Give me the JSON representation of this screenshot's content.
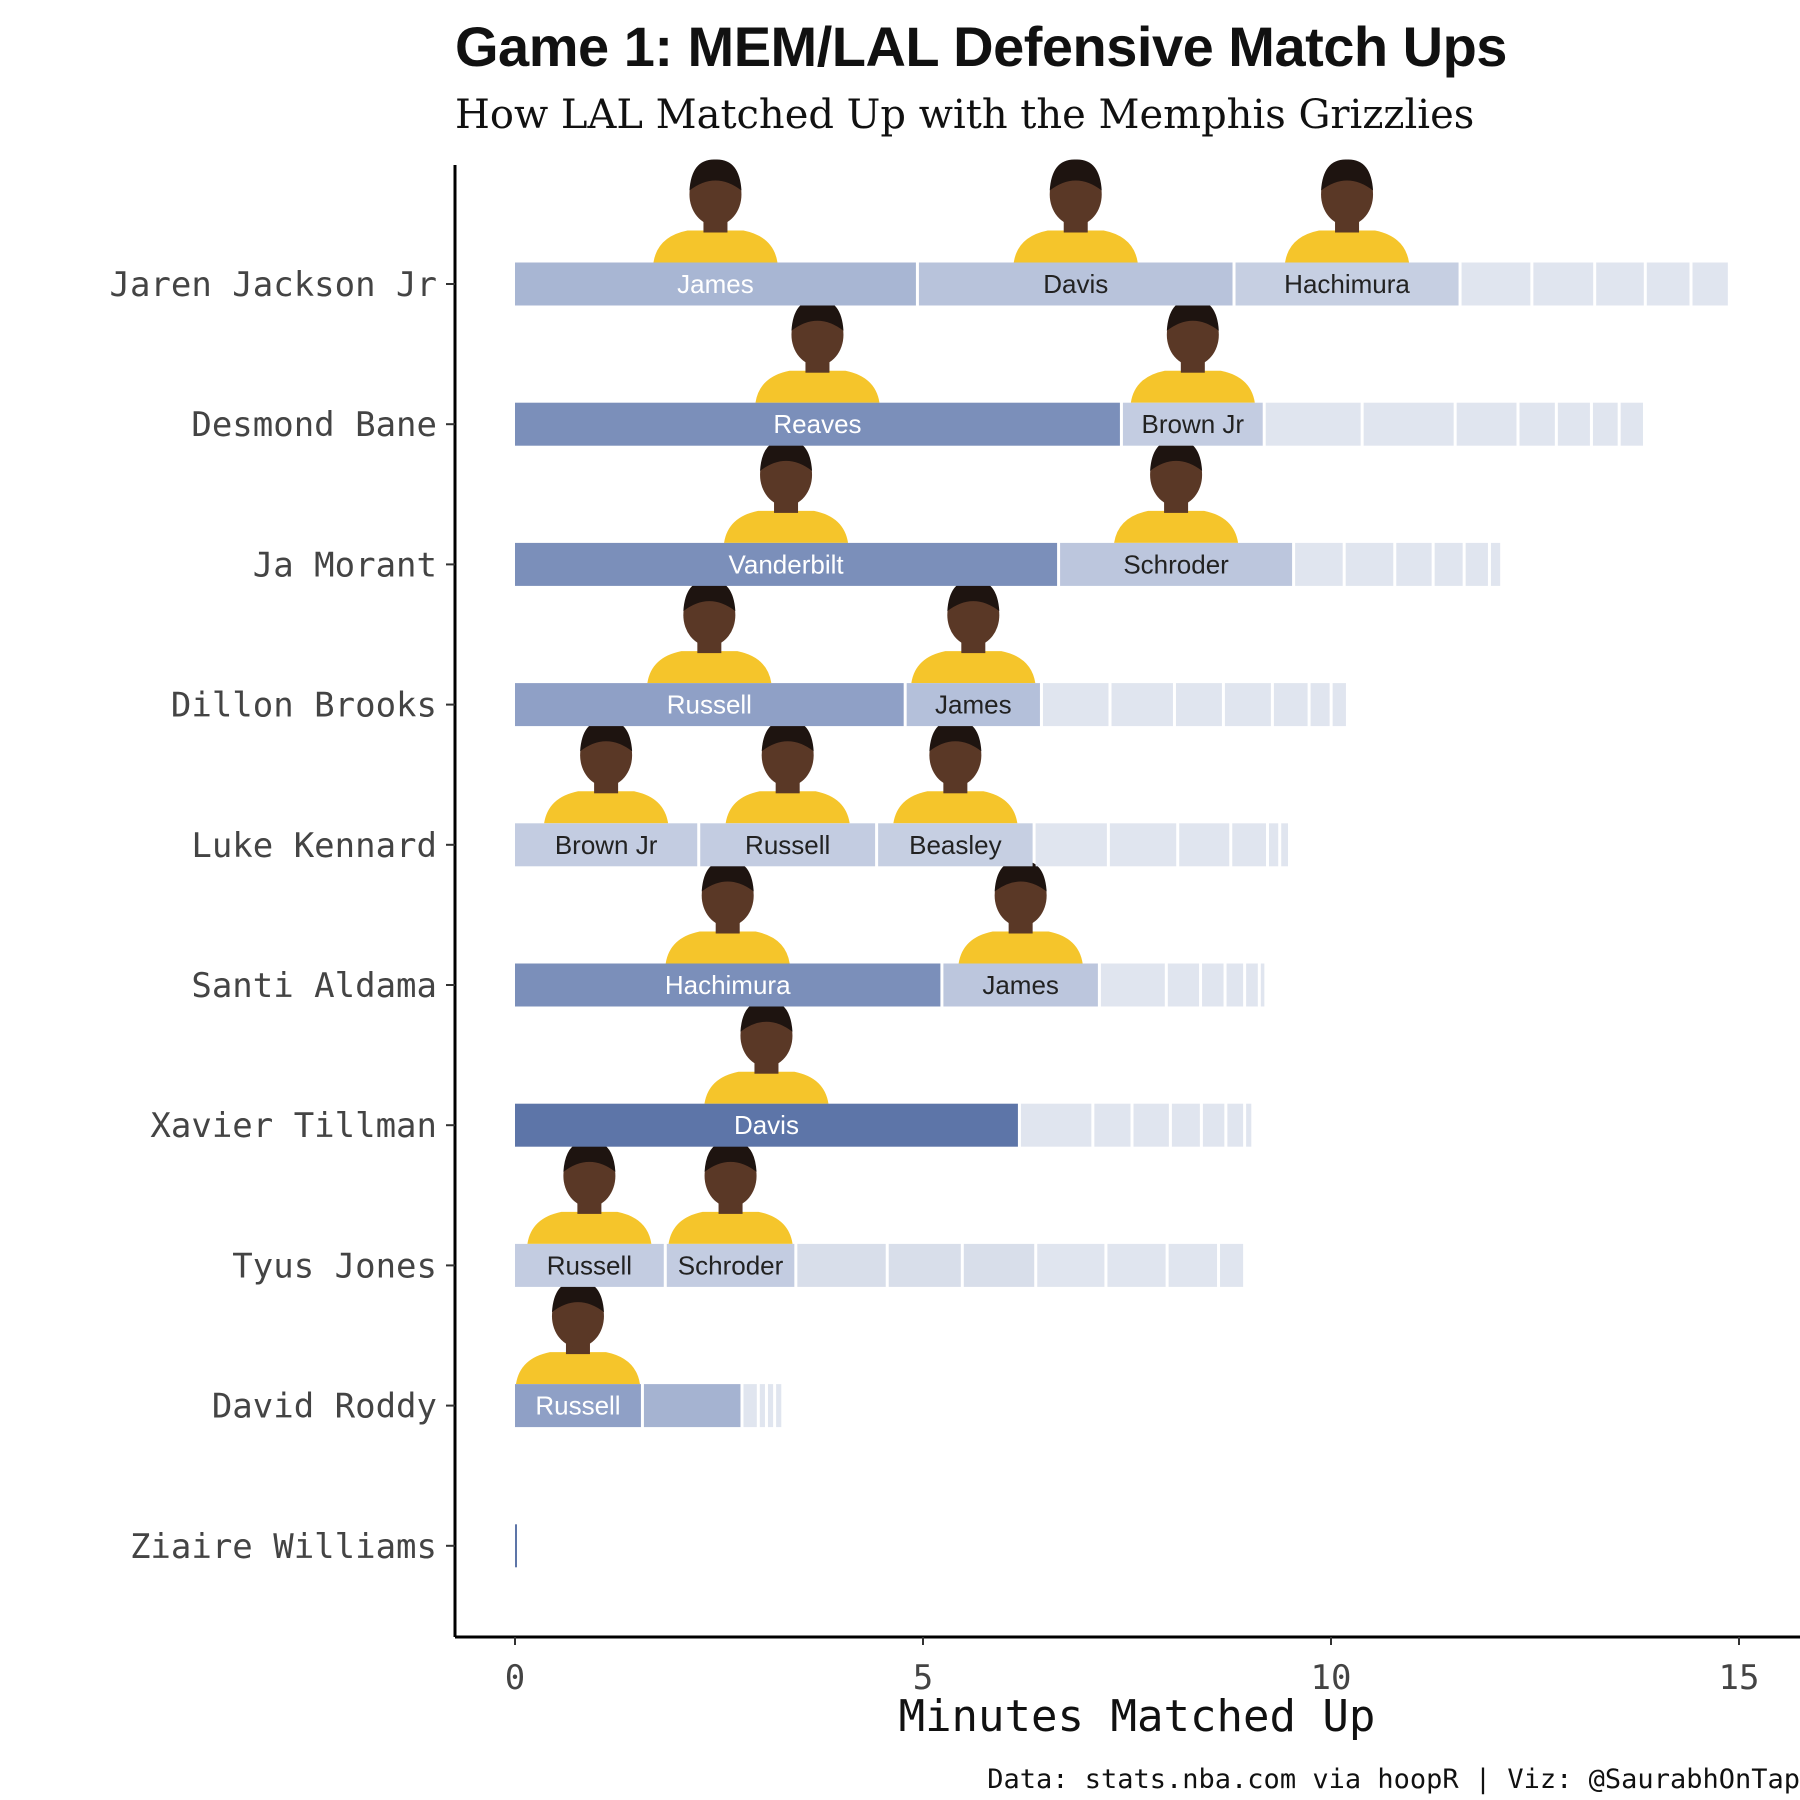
{
  "title": "Game 1: MEM/LAL Defensive Match Ups",
  "subtitle": "How LAL Matched Up with the Memphis Grizzlies",
  "caption": "Data: stats.nba.com via hoopR | Viz: @SaurabhOnTap",
  "chart_data": {
    "type": "bar",
    "orientation": "horizontal",
    "stacked": true,
    "xlabel": "Minutes Matched Up",
    "ylabel": "",
    "xlim": [
      0,
      15
    ],
    "xticks": [
      0,
      5,
      10,
      15
    ],
    "grid": false,
    "colors": {
      "label_light_text": "#ffffff",
      "label_dark_text": "#222222",
      "jersey": "#f5c52b",
      "skin": "#5a3826"
    },
    "rows": [
      {
        "player": "Jaren Jackson Jr",
        "segments": [
          {
            "label": "James",
            "minutes": 4.95,
            "color": "#a8b6d3"
          },
          {
            "label": "Davis",
            "minutes": 3.88,
            "color": "#b8c3db"
          },
          {
            "label": "Hachimura",
            "minutes": 2.77,
            "color": "#c6cfe2"
          },
          {
            "label": "",
            "minutes": 0.88,
            "color": "#e0e5ef"
          },
          {
            "label": "",
            "minutes": 0.77,
            "color": "#e0e5ef"
          },
          {
            "label": "",
            "minutes": 0.62,
            "color": "#e0e5ef"
          },
          {
            "label": "",
            "minutes": 0.56,
            "color": "#e0e5ef"
          },
          {
            "label": "",
            "minutes": 0.47,
            "color": "#e0e5ef"
          }
        ]
      },
      {
        "player": "Desmond Bane",
        "segments": [
          {
            "label": "Reaves",
            "minutes": 7.45,
            "color": "#7b8fba"
          },
          {
            "label": "Brown Jr",
            "minutes": 1.75,
            "color": "#c3cce1"
          },
          {
            "label": "",
            "minutes": 1.2,
            "color": "#e0e5ef"
          },
          {
            "label": "",
            "minutes": 1.14,
            "color": "#e0e5ef"
          },
          {
            "label": "",
            "minutes": 0.77,
            "color": "#e0e5ef"
          },
          {
            "label": "",
            "minutes": 0.47,
            "color": "#e0e5ef"
          },
          {
            "label": "",
            "minutes": 0.43,
            "color": "#e0e5ef"
          },
          {
            "label": "",
            "minutes": 0.34,
            "color": "#e0e5ef"
          },
          {
            "label": "",
            "minutes": 0.31,
            "color": "#e0e5ef"
          }
        ]
      },
      {
        "player": "Ja Morant",
        "segments": [
          {
            "label": "Vanderbilt",
            "minutes": 6.68,
            "color": "#7b8fba"
          },
          {
            "label": "Schroder",
            "minutes": 2.88,
            "color": "#bcc6dd"
          },
          {
            "label": "",
            "minutes": 0.62,
            "color": "#e0e5ef"
          },
          {
            "label": "",
            "minutes": 0.62,
            "color": "#e0e5ef"
          },
          {
            "label": "",
            "minutes": 0.47,
            "color": "#e0e5ef"
          },
          {
            "label": "",
            "minutes": 0.38,
            "color": "#e0e5ef"
          },
          {
            "label": "",
            "minutes": 0.31,
            "color": "#e0e5ef"
          },
          {
            "label": "",
            "minutes": 0.15,
            "color": "#e0e5ef"
          }
        ]
      },
      {
        "player": "Dillon Brooks",
        "segments": [
          {
            "label": "Russell",
            "minutes": 4.8,
            "color": "#8fa0c6"
          },
          {
            "label": "James",
            "minutes": 1.67,
            "color": "#b4c0da"
          },
          {
            "label": "",
            "minutes": 0.84,
            "color": "#e0e5ef"
          },
          {
            "label": "",
            "minutes": 0.79,
            "color": "#e0e5ef"
          },
          {
            "label": "",
            "minutes": 0.6,
            "color": "#e0e5ef"
          },
          {
            "label": "",
            "minutes": 0.6,
            "color": "#e0e5ef"
          },
          {
            "label": "",
            "minutes": 0.45,
            "color": "#e0e5ef"
          },
          {
            "label": "",
            "minutes": 0.27,
            "color": "#e0e5ef"
          },
          {
            "label": "",
            "minutes": 0.2,
            "color": "#e0e5ef"
          }
        ]
      },
      {
        "player": "Luke Kennard",
        "segments": [
          {
            "label": "Brown Jr",
            "minutes": 2.27,
            "color": "#c3cce1"
          },
          {
            "label": "Russell",
            "minutes": 2.18,
            "color": "#c3cce1"
          },
          {
            "label": "Beasley",
            "minutes": 1.93,
            "color": "#c6cfe2"
          },
          {
            "label": "",
            "minutes": 0.91,
            "color": "#e0e5ef"
          },
          {
            "label": "",
            "minutes": 0.85,
            "color": "#e0e5ef"
          },
          {
            "label": "",
            "minutes": 0.65,
            "color": "#e0e5ef"
          },
          {
            "label": "",
            "minutes": 0.45,
            "color": "#e0e5ef"
          },
          {
            "label": "",
            "minutes": 0.15,
            "color": "#e0e5ef"
          },
          {
            "label": "",
            "minutes": 0.12,
            "color": "#e0e5ef"
          }
        ]
      },
      {
        "player": "Santi Aldama",
        "segments": [
          {
            "label": "Hachimura",
            "minutes": 5.25,
            "color": "#7b8fba"
          },
          {
            "label": "James",
            "minutes": 1.93,
            "color": "#bcc6dd"
          },
          {
            "label": "",
            "minutes": 0.82,
            "color": "#e0e5ef"
          },
          {
            "label": "",
            "minutes": 0.42,
            "color": "#e0e5ef"
          },
          {
            "label": "",
            "minutes": 0.3,
            "color": "#e0e5ef"
          },
          {
            "label": "",
            "minutes": 0.24,
            "color": "#e0e5ef"
          },
          {
            "label": "",
            "minutes": 0.18,
            "color": "#e0e5ef"
          },
          {
            "label": "",
            "minutes": 0.08,
            "color": "#e0e5ef"
          }
        ]
      },
      {
        "player": "Xavier Tillman",
        "segments": [
          {
            "label": "Davis",
            "minutes": 6.2,
            "color": "#5d75a8"
          },
          {
            "label": "",
            "minutes": 0.9,
            "color": "#e0e5ef"
          },
          {
            "label": "",
            "minutes": 0.48,
            "color": "#e0e5ef"
          },
          {
            "label": "",
            "minutes": 0.47,
            "color": "#e0e5ef"
          },
          {
            "label": "",
            "minutes": 0.38,
            "color": "#e0e5ef"
          },
          {
            "label": "",
            "minutes": 0.3,
            "color": "#e0e5ef"
          },
          {
            "label": "",
            "minutes": 0.23,
            "color": "#e0e5ef"
          },
          {
            "label": "",
            "minutes": 0.1,
            "color": "#e0e5ef"
          }
        ]
      },
      {
        "player": "Tyus Jones",
        "segments": [
          {
            "label": "Russell",
            "minutes": 1.86,
            "color": "#c3cce1"
          },
          {
            "label": "Schroder",
            "minutes": 1.6,
            "color": "#c3cce1"
          },
          {
            "label": "",
            "minutes": 1.12,
            "color": "#d8deea"
          },
          {
            "label": "",
            "minutes": 0.92,
            "color": "#d8deea"
          },
          {
            "label": "",
            "minutes": 0.9,
            "color": "#d8deea"
          },
          {
            "label": "",
            "minutes": 0.86,
            "color": "#e0e5ef"
          },
          {
            "label": "",
            "minutes": 0.75,
            "color": "#e0e5ef"
          },
          {
            "label": "",
            "minutes": 0.63,
            "color": "#e0e5ef"
          },
          {
            "label": "",
            "minutes": 0.32,
            "color": "#e0e5ef"
          }
        ]
      },
      {
        "player": "David Roddy",
        "segments": [
          {
            "label": "Russell",
            "minutes": 1.58,
            "color": "#8fa0c6"
          },
          {
            "label": "",
            "minutes": 1.22,
            "color": "#a5b3d1"
          },
          {
            "label": "",
            "minutes": 0.2,
            "color": "#e0e5ef"
          },
          {
            "label": "",
            "minutes": 0.1,
            "color": "#e0e5ef"
          },
          {
            "label": "",
            "minutes": 0.1,
            "color": "#e0e5ef"
          },
          {
            "label": "",
            "minutes": 0.1,
            "color": "#e0e5ef"
          }
        ]
      },
      {
        "player": "Ziaire Williams",
        "segments": [
          {
            "label": "",
            "minutes": 0.04,
            "color": "#5d75a8"
          }
        ]
      }
    ]
  }
}
